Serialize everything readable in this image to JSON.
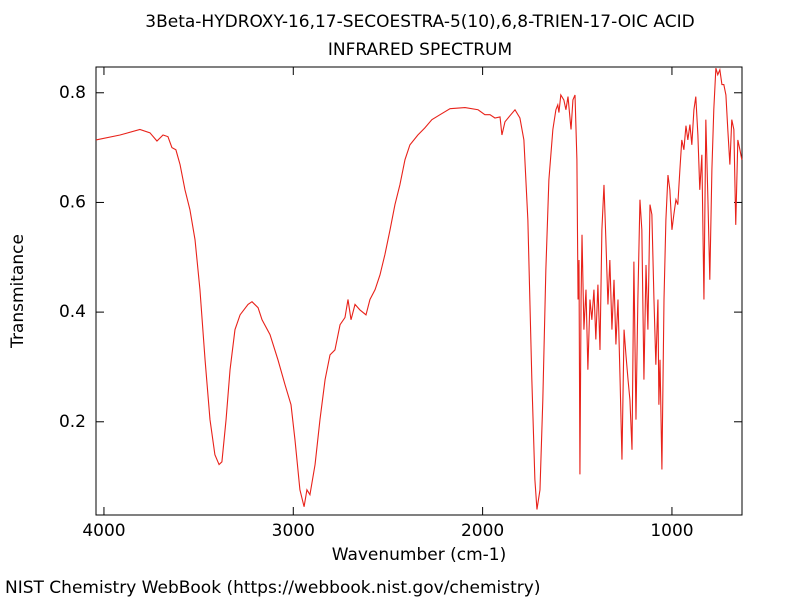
{
  "chart_data": {
    "type": "line",
    "title": "3Beta-HYDROXY-16,17-SECOESTRA-5(10),6,8-TRIEN-17-OIC ACID",
    "subtitle": "INFRARED SPECTRUM",
    "x_label": "Wavenumber (cm-1)",
    "y_label": "Transmitance",
    "source": "NIST Chemistry WebBook (https://webbook.nist.gov/chemistry)",
    "color": "#e8221a",
    "xlim": [
      4042,
      630
    ],
    "ylim": [
      0.03,
      0.847
    ],
    "xticks": [
      4000,
      3000,
      2000,
      1000
    ],
    "yticks": [
      0.2,
      0.4,
      0.6,
      0.8
    ],
    "x": [
      4042,
      3915,
      3810,
      3757,
      3720,
      3688,
      3662,
      3641,
      3620,
      3598,
      3572,
      3546,
      3519,
      3493,
      3466,
      3440,
      3414,
      3392,
      3377,
      3355,
      3334,
      3308,
      3281,
      3239,
      3218,
      3186,
      3165,
      3123,
      3081,
      3044,
      3012,
      2991,
      2965,
      2943,
      2928,
      2912,
      2885,
      2859,
      2832,
      2806,
      2780,
      2753,
      2727,
      2711,
      2695,
      2674,
      2648,
      2616,
      2595,
      2568,
      2542,
      2516,
      2489,
      2463,
      2437,
      2410,
      2384,
      2342,
      2305,
      2268,
      2225,
      2172,
      2093,
      2024,
      1988,
      1961,
      1935,
      1908,
      1898,
      1882,
      1856,
      1829,
      1803,
      1782,
      1761,
      1740,
      1724,
      1713,
      1697,
      1682,
      1666,
      1650,
      1629,
      1613,
      1603,
      1597,
      1587,
      1571,
      1560,
      1549,
      1533,
      1523,
      1512,
      1502,
      1496,
      1491,
      1486,
      1480,
      1475,
      1465,
      1454,
      1444,
      1433,
      1423,
      1412,
      1402,
      1391,
      1380,
      1370,
      1359,
      1349,
      1338,
      1328,
      1317,
      1306,
      1296,
      1285,
      1274,
      1264,
      1253,
      1243,
      1232,
      1222,
      1211,
      1201,
      1190,
      1180,
      1169,
      1159,
      1148,
      1137,
      1127,
      1116,
      1106,
      1095,
      1085,
      1074,
      1069,
      1063,
      1053,
      1042,
      1032,
      1021,
      1011,
      1000,
      990,
      979,
      969,
      958,
      948,
      937,
      926,
      916,
      905,
      895,
      884,
      874,
      863,
      853,
      842,
      831,
      821,
      810,
      800,
      789,
      779,
      768,
      758,
      747,
      736,
      726,
      715,
      705,
      694,
      684,
      673,
      663,
      652,
      641,
      631
    ],
    "values": [
      0.714,
      0.723,
      0.733,
      0.727,
      0.712,
      0.723,
      0.72,
      0.7,
      0.696,
      0.669,
      0.623,
      0.587,
      0.532,
      0.441,
      0.313,
      0.204,
      0.14,
      0.122,
      0.127,
      0.204,
      0.295,
      0.368,
      0.395,
      0.414,
      0.419,
      0.408,
      0.386,
      0.359,
      0.313,
      0.268,
      0.231,
      0.167,
      0.076,
      0.045,
      0.076,
      0.067,
      0.122,
      0.204,
      0.277,
      0.322,
      0.331,
      0.377,
      0.39,
      0.423,
      0.386,
      0.414,
      0.404,
      0.395,
      0.423,
      0.441,
      0.468,
      0.505,
      0.55,
      0.596,
      0.632,
      0.678,
      0.705,
      0.723,
      0.736,
      0.751,
      0.76,
      0.771,
      0.773,
      0.769,
      0.76,
      0.76,
      0.754,
      0.756,
      0.723,
      0.747,
      0.758,
      0.769,
      0.754,
      0.714,
      0.568,
      0.277,
      0.095,
      0.04,
      0.076,
      0.24,
      0.477,
      0.641,
      0.733,
      0.769,
      0.778,
      0.764,
      0.796,
      0.787,
      0.769,
      0.793,
      0.733,
      0.787,
      0.796,
      0.678,
      0.423,
      0.495,
      0.104,
      0.423,
      0.541,
      0.368,
      0.441,
      0.295,
      0.423,
      0.386,
      0.441,
      0.35,
      0.45,
      0.331,
      0.55,
      0.632,
      0.532,
      0.414,
      0.495,
      0.368,
      0.459,
      0.341,
      0.423,
      0.277,
      0.131,
      0.368,
      0.322,
      0.277,
      0.24,
      0.149,
      0.492,
      0.204,
      0.423,
      0.605,
      0.55,
      0.277,
      0.486,
      0.368,
      0.596,
      0.578,
      0.423,
      0.304,
      0.423,
      0.231,
      0.313,
      0.113,
      0.423,
      0.568,
      0.65,
      0.623,
      0.55,
      0.578,
      0.605,
      0.596,
      0.66,
      0.714,
      0.696,
      0.74,
      0.714,
      0.742,
      0.705,
      0.769,
      0.793,
      0.723,
      0.623,
      0.687,
      0.423,
      0.751,
      0.605,
      0.459,
      0.66,
      0.769,
      0.845,
      0.833,
      0.842,
      0.815,
      0.815,
      0.796,
      0.733,
      0.669,
      0.751,
      0.733,
      0.559,
      0.714,
      0.696,
      0.678
    ]
  }
}
